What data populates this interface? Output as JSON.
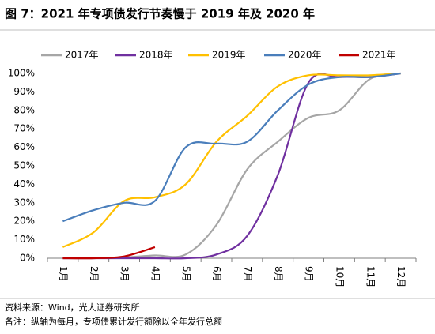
{
  "chart_data": {
    "type": "line",
    "title": "图 7：2021 年专项债发行节奏慢于 2019 年及 2020 年",
    "categories": [
      "1月",
      "2月",
      "3月",
      "4月",
      "5月",
      "6月",
      "7月",
      "8月",
      "9月",
      "10月",
      "11月",
      "12月"
    ],
    "series": [
      {
        "name": "2017年",
        "color": "#a6a6a6",
        "values": [
          0,
          0,
          0.5,
          1.5,
          2,
          18,
          48,
          63,
          76,
          80,
          97,
          100
        ]
      },
      {
        "name": "2018年",
        "color": "#7030a0",
        "values": [
          0,
          0,
          0,
          0,
          0,
          2,
          12,
          45,
          95,
          98,
          98,
          100
        ]
      },
      {
        "name": "2019年",
        "color": "#ffc000",
        "values": [
          6,
          14,
          31,
          33,
          40,
          63,
          77,
          93,
          99,
          99,
          99,
          100
        ]
      },
      {
        "name": "2020年",
        "color": "#4a7ebb",
        "values": [
          20,
          26,
          30,
          31,
          60,
          62,
          63,
          80,
          94,
          98,
          98,
          100
        ]
      },
      {
        "name": "2021年",
        "color": "#c00000",
        "values": [
          0,
          0,
          1,
          6,
          null,
          null,
          null,
          null,
          null,
          null,
          null,
          null
        ]
      }
    ],
    "ylim": [
      0,
      100
    ],
    "yticks": [
      {
        "value": 0,
        "label": "0%"
      },
      {
        "value": 10,
        "label": "10%"
      },
      {
        "value": 20,
        "label": "20%"
      },
      {
        "value": 30,
        "label": "30%"
      },
      {
        "value": 40,
        "label": "40%"
      },
      {
        "value": 50,
        "label": "50%"
      },
      {
        "value": 60,
        "label": "60%"
      },
      {
        "value": 70,
        "label": "70%"
      },
      {
        "value": 80,
        "label": "80%"
      },
      {
        "value": 90,
        "label": "90%"
      },
      {
        "value": 100,
        "label": "100%"
      }
    ],
    "grid": false,
    "legend": "top",
    "notes": [
      "资料来源：Wind，光大证券研究所",
      "备注：纵轴为每月，专项债累计发行额除以全年发行总额"
    ]
  }
}
